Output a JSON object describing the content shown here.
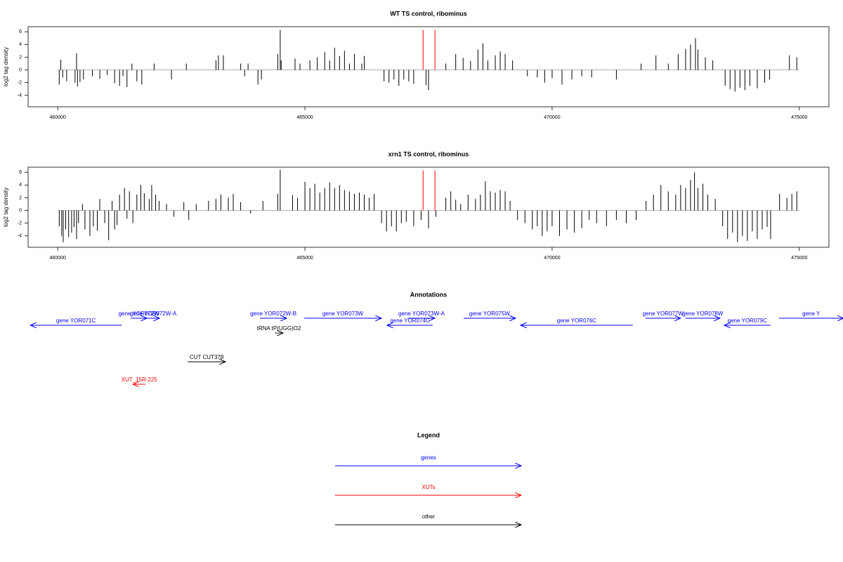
{
  "chart_data": [
    {
      "type": "bar",
      "title": "WT TS control, ribominus",
      "ylabel": "log2 tag density",
      "xlim": [
        459400,
        475600
      ],
      "xticks": [
        460000,
        465000,
        470000,
        475000
      ],
      "ylim": [
        -5.8,
        6.8
      ],
      "yticks": [
        -4,
        -2,
        0,
        2,
        4,
        6
      ],
      "series": [
        {
          "color": "#000000",
          "x": [
            460030,
            460060,
            460100,
            460180,
            460350,
            460380,
            460400,
            460450,
            460520,
            460700,
            460850,
            461000,
            461150,
            461250,
            461320,
            461400,
            461500,
            461600,
            461700,
            461950,
            462300,
            462600,
            463200,
            463250,
            463350,
            463700,
            463780,
            463850,
            464050,
            464120,
            464450,
            464500,
            464520,
            464800,
            464900,
            465100,
            465250,
            465400,
            465500,
            465600,
            465700,
            465800,
            465900,
            466000,
            466150,
            466200,
            466600,
            466700,
            466800,
            466900,
            467000,
            467100,
            467200,
            467450,
            467500,
            467850,
            468050,
            468200,
            468350,
            468500,
            468600,
            468700,
            468850,
            468950,
            469050,
            469200,
            469500,
            469700,
            469850,
            470000,
            470200,
            470400,
            470600,
            470800,
            471300,
            471800,
            472100,
            472350,
            472550,
            472700,
            472800,
            472900,
            472950,
            473100,
            473250,
            473500,
            473600,
            473700,
            473800,
            473900,
            474000,
            474150,
            474300,
            474400,
            474800,
            474950
          ],
          "values": [
            -2.3,
            1.6,
            -1.2,
            -1.8,
            -2.0,
            2.6,
            -2.6,
            -1.9,
            -1.5,
            -1.0,
            -1.4,
            -0.8,
            -2.1,
            -2.5,
            -1.0,
            -2.7,
            1.0,
            -1.8,
            -2.3,
            1.0,
            -1.5,
            1.0,
            1.5,
            2.3,
            2.3,
            1.0,
            -1.0,
            1.0,
            -2.3,
            -1.5,
            2.5,
            6.3,
            1.5,
            1.8,
            1.0,
            1.5,
            2.0,
            2.8,
            1.5,
            3.5,
            2.2,
            3.0,
            1.0,
            2.5,
            1.0,
            2.2,
            -1.8,
            -2.0,
            -1.5,
            -2.5,
            -1.5,
            -1.8,
            -2.2,
            -2.4,
            -3.2,
            1.0,
            2.5,
            1.9,
            1.4,
            3.2,
            4.2,
            1.5,
            2.3,
            2.9,
            2.5,
            1.5,
            -1.0,
            -1.2,
            -2.0,
            -1.3,
            -2.3,
            -1.5,
            -1.0,
            -1.2,
            -1.5,
            1.0,
            2.3,
            1.0,
            2.5,
            3.3,
            4.0,
            5.0,
            3.2,
            2.0,
            1.5,
            -2.5,
            -3.0,
            -3.4,
            -2.8,
            -3.2,
            -2.5,
            -2.9,
            -2.0,
            -1.5,
            2.3,
            2.0
          ]
        },
        {
          "color": "#ff0000",
          "x": [
            467390,
            467630
          ],
          "values": [
            6.3,
            6.3
          ]
        }
      ]
    },
    {
      "type": "bar",
      "title": "xrn1 TS control, ribominus",
      "ylabel": "log2 tag density",
      "xlim": [
        459400,
        475600
      ],
      "xticks": [
        460000,
        465000,
        470000,
        475000
      ],
      "ylim": [
        -5.8,
        6.8
      ],
      "yticks": [
        -4,
        -2,
        0,
        2,
        4,
        6
      ],
      "series": [
        {
          "color": "#000000",
          "x": [
            460030,
            460080,
            460110,
            460160,
            460220,
            460280,
            460330,
            460380,
            460420,
            460500,
            460550,
            460650,
            460720,
            460800,
            460850,
            460950,
            461030,
            461100,
            461150,
            461200,
            461250,
            461350,
            461400,
            461450,
            461520,
            461600,
            461680,
            461750,
            461850,
            461900,
            461980,
            462050,
            462200,
            462350,
            462550,
            462650,
            462800,
            463050,
            463200,
            463300,
            463450,
            463550,
            463700,
            463900,
            464150,
            464450,
            464500,
            464750,
            464850,
            465000,
            465100,
            465200,
            465300,
            465400,
            465500,
            465600,
            465700,
            465800,
            465900,
            466000,
            466100,
            466200,
            466300,
            466400,
            466550,
            466650,
            466750,
            466850,
            466950,
            467050,
            467200,
            467350,
            467500,
            467650,
            467850,
            467950,
            468050,
            468150,
            468300,
            468450,
            468550,
            468650,
            468750,
            468850,
            468950,
            469050,
            469150,
            469300,
            469450,
            469600,
            469700,
            469800,
            469900,
            470000,
            470150,
            470300,
            470450,
            470600,
            470750,
            470900,
            471100,
            471300,
            471500,
            471700,
            471900,
            472050,
            472200,
            472350,
            472500,
            472600,
            472700,
            472800,
            472880,
            472950,
            473050,
            473150,
            473300,
            473450,
            473550,
            473650,
            473750,
            473850,
            473950,
            474050,
            474150,
            474250,
            474350,
            474420,
            474600,
            474750,
            474850,
            474950
          ],
          "values": [
            -2.5,
            -4.0,
            -5.0,
            -3.0,
            -4.2,
            -3.5,
            -2.6,
            -4.5,
            -2.0,
            1.0,
            -3.0,
            -4.0,
            -2.5,
            -3.2,
            1.8,
            -2.0,
            -4.7,
            1.5,
            -3.0,
            -2.3,
            2.5,
            3.5,
            -1.3,
            3.0,
            -2.0,
            2.5,
            4.0,
            2.7,
            1.8,
            4.0,
            2.5,
            1.5,
            1.0,
            -1.0,
            1.3,
            -1.5,
            1.0,
            1.5,
            1.8,
            2.5,
            2.0,
            2.6,
            1.3,
            -0.5,
            1.5,
            2.6,
            6.4,
            2.4,
            2.0,
            4.5,
            3.5,
            4.2,
            2.8,
            3.5,
            4.4,
            3.5,
            4.0,
            3.2,
            3.0,
            2.6,
            2.8,
            2.5,
            2.0,
            2.6,
            -2.0,
            -3.3,
            -2.5,
            -3.3,
            -2.0,
            -1.8,
            -2.5,
            -1.5,
            -2.8,
            -1.0,
            2.0,
            3.0,
            1.7,
            1.0,
            2.5,
            1.8,
            2.5,
            4.6,
            3.0,
            2.8,
            3.2,
            3.0,
            1.5,
            -1.5,
            -2.0,
            -3.0,
            -2.5,
            -4.0,
            -3.3,
            -2.5,
            -4.0,
            -3.0,
            -3.5,
            -2.8,
            -1.5,
            -2.0,
            -2.5,
            -1.5,
            -2.0,
            -1.5,
            1.5,
            2.5,
            4.0,
            3.0,
            2.5,
            4.0,
            3.5,
            4.8,
            6.0,
            3.5,
            4.2,
            2.5,
            1.8,
            -2.5,
            -4.5,
            -3.5,
            -5.0,
            -4.0,
            -4.8,
            -3.3,
            -4.5,
            -3.0,
            -2.6,
            -4.5,
            2.6,
            2.0,
            2.6,
            3.0
          ]
        },
        {
          "color": "#ff0000",
          "x": [
            467390,
            467630
          ],
          "values": [
            6.3,
            6.3
          ]
        }
      ]
    }
  ],
  "annotations": {
    "title": "Annotations",
    "features": [
      {
        "label": "gene YOR071C",
        "start": 461293,
        "end": 459446,
        "color": "#0000ff"
      },
      {
        "label": "gene YOR072W",
        "start": 461477,
        "end": 461804,
        "color": "#0000ff"
      },
      {
        "label": "gene YOR072W-A",
        "start": 461804,
        "end": 462060,
        "color": "#0000ff"
      },
      {
        "label": "gene YOR072W-B",
        "start": 464091,
        "end": 464631,
        "color": "#0000ff"
      },
      {
        "label": "gene YOR073W",
        "start": 464986,
        "end": 466548,
        "color": "#0000ff"
      },
      {
        "label": "gene YOR073W-A",
        "start": 467088,
        "end": 467628,
        "color": "#0000ff"
      },
      {
        "label": "gene YOR074C",
        "start": 467585,
        "end": 466662,
        "color": "#0000ff"
      },
      {
        "label": "gene YOR075W",
        "start": 468210,
        "end": 469261,
        "color": "#0000ff"
      },
      {
        "label": "gene YOR076C",
        "start": 471634,
        "end": 469361,
        "color": "#0000ff"
      },
      {
        "label": "gene YOR077W",
        "start": 471889,
        "end": 472599,
        "color": "#0000ff"
      },
      {
        "label": "gene YOR078W",
        "start": 472699,
        "end": 473395,
        "color": "#0000ff"
      },
      {
        "label": "gene YOR079C",
        "start": 474418,
        "end": 473480,
        "color": "#0000ff"
      },
      {
        "label": "gene Y",
        "start": 474588,
        "end": 475895,
        "color": "#0000ff"
      },
      {
        "label": "tRNA tP(UGG)O2",
        "start": 464389,
        "end": 464560,
        "color": "#000000"
      },
      {
        "label": "CUT CUT378",
        "start": 462628,
        "end": 463395,
        "color": "#000000"
      },
      {
        "label": "XUT_15R-225",
        "start": 461776,
        "end": 461520,
        "color": "#ff0000"
      }
    ]
  },
  "legend": {
    "title": "Legend",
    "items": [
      {
        "label": "genes",
        "color": "#0000ff"
      },
      {
        "label": "XUTs",
        "color": "#ff0000"
      },
      {
        "label": "other",
        "color": "#000000"
      }
    ]
  }
}
